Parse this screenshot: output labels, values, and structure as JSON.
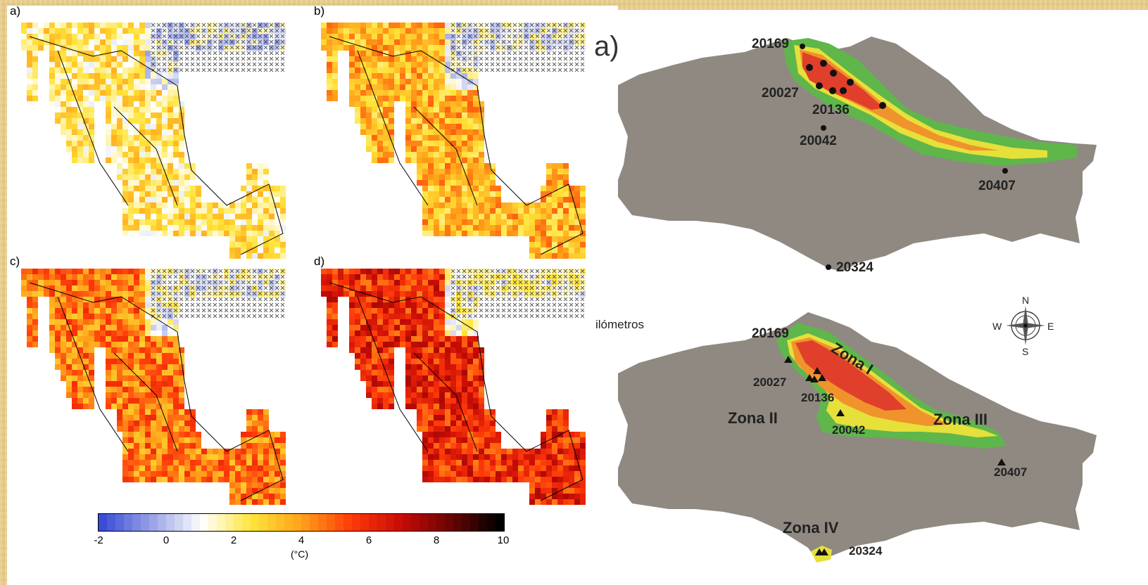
{
  "left_figure": {
    "panels": [
      {
        "label": "a)"
      },
      {
        "label": "b)"
      },
      {
        "label": "c)"
      },
      {
        "label": "d)"
      }
    ],
    "colorbar": {
      "ticks": [
        "-2",
        "0",
        "2",
        "4",
        "6",
        "8",
        "10"
      ],
      "tick_values": [
        -2,
        0,
        2,
        4,
        6,
        8,
        10
      ],
      "range": [
        -2,
        10
      ],
      "unit": "(°C)",
      "colors": [
        "#3b4cd6",
        "#9aa4e6",
        "#ffffff",
        "#ffe43a",
        "#ffa21a",
        "#ff3a0a",
        "#c80c06",
        "#6a0404",
        "#000000"
      ]
    }
  },
  "right_figure": {
    "panel_label": "a)",
    "scale_text": "ilómetros",
    "compass": {
      "n": "N",
      "s": "S",
      "e": "E",
      "w": "W"
    },
    "upper_stations": [
      "20169",
      "20027",
      "20136",
      "20042",
      "20407",
      "20324"
    ],
    "lower_stations": [
      "20169",
      "20027",
      "20136",
      "20042",
      "20407",
      "20324"
    ],
    "zones": [
      "Zona I",
      "Zona II",
      "Zona III",
      "Zona IV"
    ],
    "colors": {
      "land": "#8f8982",
      "green": "#5fb64a",
      "yellow": "#e6e03a",
      "orange": "#f0932c",
      "red": "#e0402b"
    }
  }
}
